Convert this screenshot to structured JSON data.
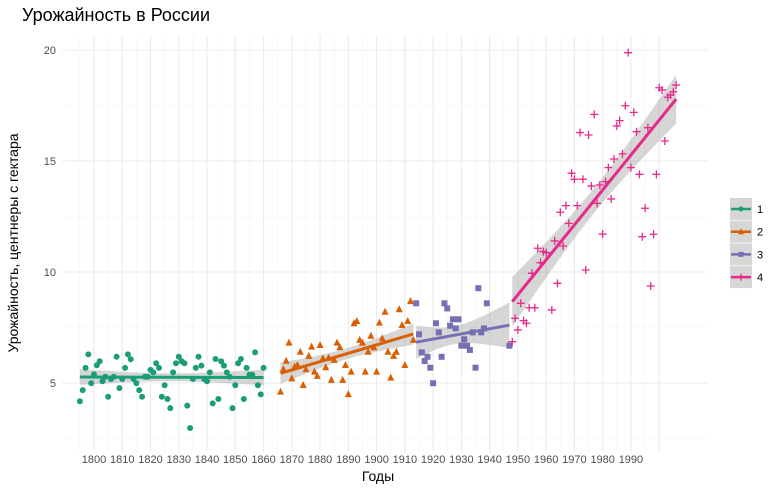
{
  "chart_data": {
    "type": "scatter",
    "title": "Урожайность в России",
    "xlabel": "Годы",
    "ylabel": "Урожайность, центнеры с гектара",
    "xlim": [
      1787,
      2016
    ],
    "ylim": [
      2,
      20.7
    ],
    "x_ticks": [
      "1800",
      "1810",
      "1820",
      "1830",
      "1840",
      "1850",
      "1860",
      "1870",
      "1880",
      "1890",
      "1900",
      "1910",
      "1920",
      "1930",
      "1940",
      "1950",
      "1960",
      "1970",
      "1980",
      "1990"
    ],
    "y_ticks": [
      "5",
      "10",
      "15",
      "20"
    ],
    "grid": true,
    "legend_position": "right",
    "trend": "linear fit with confidence band per series",
    "series": [
      {
        "name": "1",
        "color": "#1B9E77",
        "shape": "circle",
        "x": [
          1795,
          1796,
          1797,
          1798,
          1799,
          1800,
          1801,
          1802,
          1803,
          1804,
          1805,
          1806,
          1807,
          1808,
          1809,
          1810,
          1811,
          1812,
          1813,
          1814,
          1815,
          1816,
          1817,
          1818,
          1819,
          1820,
          1821,
          1822,
          1823,
          1824,
          1825,
          1826,
          1827,
          1828,
          1829,
          1830,
          1831,
          1832,
          1833,
          1834,
          1835,
          1836,
          1837,
          1838,
          1839,
          1840,
          1841,
          1842,
          1843,
          1844,
          1845,
          1846,
          1847,
          1848,
          1849,
          1850,
          1851,
          1852,
          1853,
          1854,
          1855,
          1856,
          1857,
          1858,
          1859,
          1860
        ],
        "y": [
          4.18,
          4.68,
          5.68,
          6.29,
          4.99,
          5.39,
          5.8,
          5.98,
          5.08,
          5.28,
          4.38,
          5.18,
          5.28,
          6.18,
          4.77,
          5.18,
          5.68,
          6.29,
          6.07,
          5.18,
          4.99,
          4.68,
          4.38,
          5.28,
          5.28,
          5.59,
          5.48,
          5.89,
          5.68,
          4.38,
          4.9,
          4.28,
          3.87,
          5.48,
          5.89,
          6.18,
          5.98,
          5.89,
          3.98,
          2.97,
          5.18,
          5.68,
          6.18,
          5.78,
          5.18,
          5.08,
          5.48,
          4.08,
          6.08,
          4.28,
          5.98,
          5.78,
          5.48,
          5.28,
          3.87,
          4.9,
          5.89,
          6.08,
          4.28,
          5.68,
          5.37,
          5.37,
          6.38,
          4.9,
          4.49,
          5.68
        ]
      },
      {
        "name": "2",
        "color": "#D95F02",
        "shape": "triangle",
        "x": [
          1866,
          1867,
          1868,
          1869,
          1870,
          1871,
          1872,
          1873,
          1874,
          1875,
          1876,
          1877,
          1878,
          1879,
          1880,
          1881,
          1882,
          1883,
          1884,
          1885,
          1886,
          1887,
          1888,
          1889,
          1890,
          1891,
          1892,
          1893,
          1894,
          1895,
          1896,
          1897,
          1898,
          1899,
          1900,
          1901,
          1902,
          1903,
          1904,
          1905,
          1906,
          1907,
          1908,
          1909,
          1910,
          1911,
          1912,
          1913
        ],
        "y": [
          4.61,
          5.63,
          6.0,
          6.82,
          5.21,
          5.74,
          5.81,
          6.41,
          4.91,
          5.62,
          6.22,
          6.64,
          5.51,
          5.32,
          6.71,
          6.11,
          5.71,
          6.14,
          5.14,
          6.04,
          6.82,
          6.61,
          5.14,
          5.81,
          4.5,
          5.51,
          7.69,
          7.79,
          6.94,
          6.82,
          5.51,
          6.41,
          7.13,
          6.61,
          5.51,
          7.72,
          7.01,
          8.21,
          6.41,
          5.24,
          6.22,
          6.41,
          8.32,
          7.61,
          5.81,
          7.79,
          8.69,
          6.94
        ]
      },
      {
        "name": "3",
        "color": "#7570B3",
        "shape": "square",
        "x": [
          1914,
          1915,
          1916,
          1917,
          1918,
          1919,
          1920,
          1921,
          1922,
          1923,
          1924,
          1925,
          1926,
          1927,
          1928,
          1929,
          1930,
          1931,
          1932,
          1933,
          1934,
          1935,
          1936,
          1937,
          1938,
          1939,
          1947
        ],
        "y": [
          8.59,
          7.19,
          6.38,
          5.99,
          6.18,
          5.69,
          4.99,
          7.69,
          7.28,
          6.18,
          8.59,
          8.36,
          7.58,
          7.87,
          7.46,
          7.87,
          6.68,
          6.97,
          6.68,
          6.49,
          7.28,
          5.69,
          9.27,
          7.28,
          7.46,
          8.59,
          6.68
        ]
      },
      {
        "name": "4",
        "color": "#E7298A",
        "shape": "plus",
        "x": [
          1948,
          1949,
          1950,
          1951,
          1952,
          1953,
          1954,
          1955,
          1956,
          1957,
          1958,
          1959,
          1960,
          1962,
          1963,
          1964,
          1965,
          1966,
          1967,
          1968,
          1969,
          1970,
          1971,
          1972,
          1973,
          1974,
          1975,
          1976,
          1977,
          1978,
          1979,
          1980,
          1981,
          1982,
          1983,
          1984,
          1985,
          1986,
          1987,
          1988,
          1989,
          1990,
          1991,
          1992,
          1993,
          1994,
          1995,
          1996,
          1997,
          1998,
          1999,
          2000,
          2001,
          2002,
          2003,
          2004,
          2005,
          2006
        ],
        "y": [
          6.86,
          7.91,
          7.39,
          8.59,
          7.81,
          7.69,
          8.39,
          9.94,
          8.39,
          11.07,
          10.42,
          10.92,
          10.87,
          8.29,
          11.4,
          9.49,
          12.69,
          11.17,
          12.99,
          12.19,
          14.45,
          14.18,
          12.99,
          16.28,
          14.18,
          10.09,
          16.17,
          13.87,
          17.1,
          13.09,
          13.92,
          11.71,
          14.07,
          14.7,
          13.29,
          15.09,
          16.58,
          16.82,
          15.32,
          17.49,
          19.88,
          14.7,
          17.19,
          16.32,
          14.4,
          11.59,
          12.87,
          16.5,
          9.37,
          11.7,
          14.4,
          18.3,
          18.2,
          15.9,
          17.87,
          17.97,
          18.12,
          18.42
        ]
      }
    ]
  }
}
